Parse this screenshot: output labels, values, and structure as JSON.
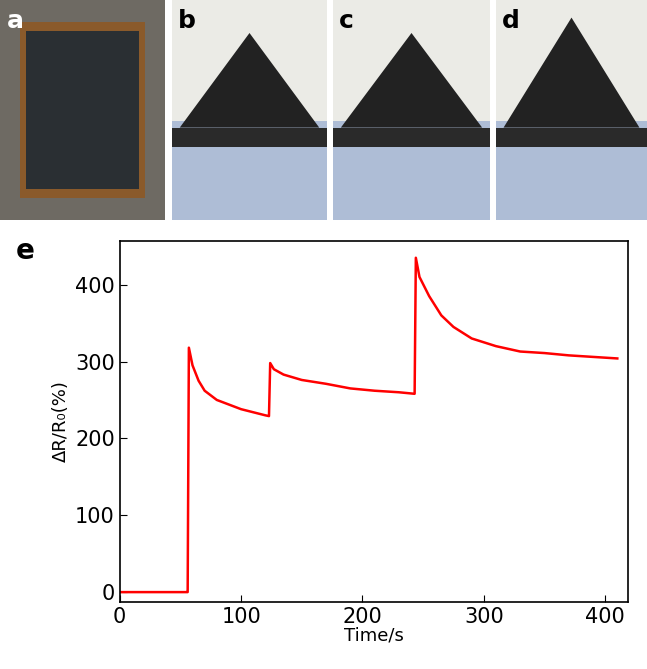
{
  "photo_panels": [
    "a",
    "b",
    "c",
    "d"
  ],
  "chart_data": {
    "type": "line",
    "annotations": [
      "e"
    ],
    "x_label": "Time/s",
    "y_label": "ΔR/R₀(%)",
    "x": [
      0,
      55,
      56,
      57,
      60,
      65,
      70,
      80,
      90,
      100,
      110,
      120,
      123,
      124,
      127,
      135,
      150,
      170,
      190,
      210,
      230,
      243,
      244,
      247,
      255,
      265,
      275,
      290,
      310,
      330,
      350,
      370,
      390,
      410
    ],
    "series": [
      {
        "name": "ΔR/R₀",
        "color": "#ff0000",
        "values": [
          0,
          0,
          0,
          318,
          295,
          275,
          262,
          250,
          244,
          238,
          234,
          230,
          229,
          298,
          290,
          283,
          276,
          271,
          265,
          262,
          260,
          258,
          435,
          410,
          385,
          360,
          345,
          330,
          320,
          313,
          311,
          308,
          306,
          304
        ]
      }
    ],
    "xlim": [
      0,
      419
    ],
    "ylim": [
      -13,
      457
    ],
    "xticks": [
      0,
      100,
      200,
      300,
      400
    ],
    "yticks": [
      0,
      100,
      200,
      300,
      400
    ],
    "grid": false
  }
}
